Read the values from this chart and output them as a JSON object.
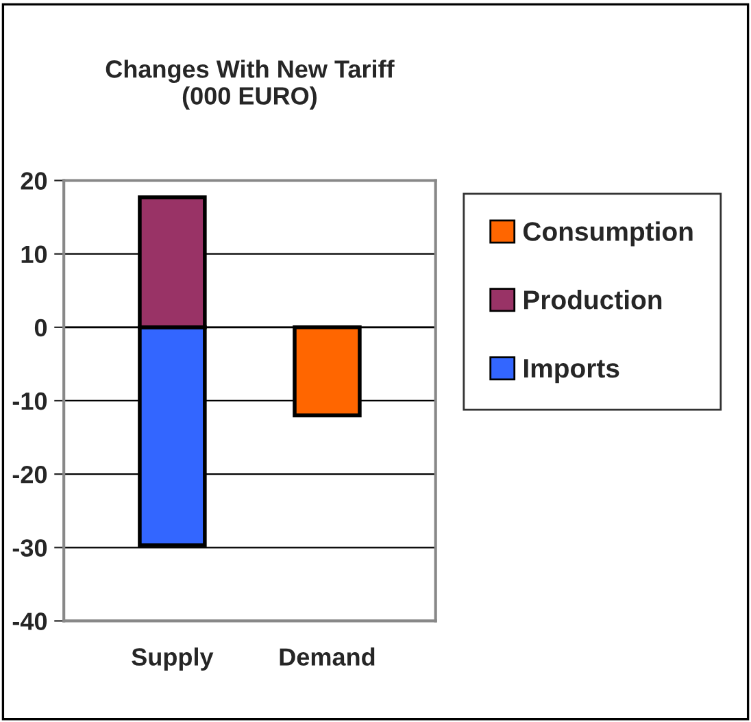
{
  "chart_data": {
    "type": "bar",
    "title": "Changes With New Tariff\n(000 EURO)",
    "categories": [
      "Supply",
      "Demand"
    ],
    "stacked": true,
    "series": [
      {
        "name": "Imports",
        "color": "#3366ff",
        "values": [
          -29.7,
          null
        ]
      },
      {
        "name": "Production",
        "color": "#993366",
        "values": [
          17.7,
          null
        ]
      },
      {
        "name": "Consumption",
        "color": "#ff6600",
        "values": [
          null,
          -12
        ]
      }
    ],
    "ylim": [
      -40,
      20
    ],
    "yticks": [
      -40,
      -30,
      -20,
      -10,
      0,
      10,
      20
    ],
    "grid": "y",
    "legend": "right"
  }
}
